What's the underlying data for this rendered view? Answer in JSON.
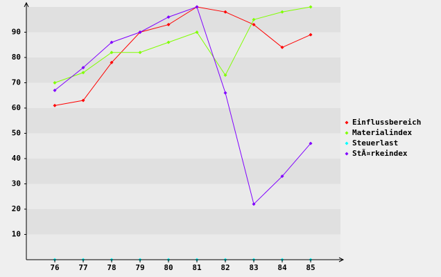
{
  "chart_data": {
    "type": "line",
    "categories": [
      "76",
      "77",
      "78",
      "79",
      "80",
      "81",
      "82",
      "83",
      "84",
      "85"
    ],
    "series": [
      {
        "name": "Einflussbereich",
        "color": "#ff0000",
        "values": [
          61,
          63,
          78,
          90,
          93,
          100,
          98,
          93,
          84,
          89
        ]
      },
      {
        "name": "Materialindex",
        "color": "#80ff00",
        "values": [
          70,
          74,
          82,
          82,
          86,
          90,
          73,
          95,
          98,
          100
        ]
      },
      {
        "name": "Steuerlast",
        "color": "#00ffff",
        "values": [
          0,
          0,
          0,
          0,
          0,
          0,
          0,
          0,
          0,
          0
        ]
      },
      {
        "name": "StÃ¤rkeindex",
        "color": "#8000ff",
        "values": [
          67,
          76,
          86,
          90,
          96,
          100,
          66,
          22,
          33,
          46
        ]
      }
    ],
    "ylim": [
      0,
      100
    ],
    "yticks": [
      10,
      20,
      30,
      40,
      50,
      60,
      70,
      80,
      90
    ],
    "grid": true,
    "legend": "right"
  }
}
